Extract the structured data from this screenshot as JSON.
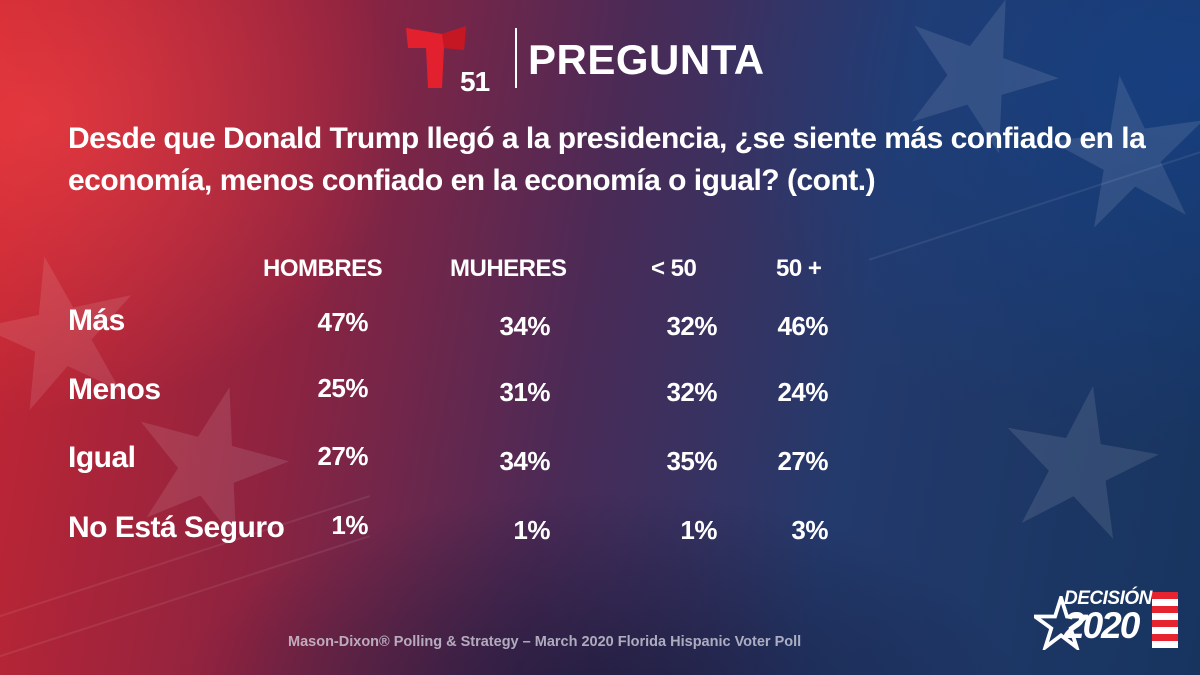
{
  "header": {
    "logo_number": "51",
    "title": "PREGUNTA"
  },
  "question": "Desde que Donald Trump llegó a la presidencia, ¿se siente más confiado en la economía, menos confiado en la economía o igual? (cont.)",
  "table": {
    "columns": [
      "HOMBRES",
      "MUHERES",
      "< 50",
      "50 +"
    ],
    "rows": [
      {
        "label": "Más",
        "values": [
          "47%",
          "34%",
          "32%",
          "46%"
        ]
      },
      {
        "label": "Menos",
        "values": [
          "25%",
          "31%",
          "32%",
          "24%"
        ]
      },
      {
        "label": "Igual",
        "values": [
          "27%",
          "34%",
          "35%",
          "27%"
        ]
      },
      {
        "label": "No Está Seguro",
        "values": [
          "1%",
          "1%",
          "1%",
          "3%"
        ]
      }
    ]
  },
  "footer": {
    "source": "Mason-Dixon® Polling & Strategy – March 2020 Florida Hispanic Voter Poll",
    "badge_title": "DECISIÓN",
    "badge_year": "2020"
  },
  "colors": {
    "logo_red": "#e2202e",
    "badge_red": "#e5242f",
    "text": "#ffffff"
  }
}
